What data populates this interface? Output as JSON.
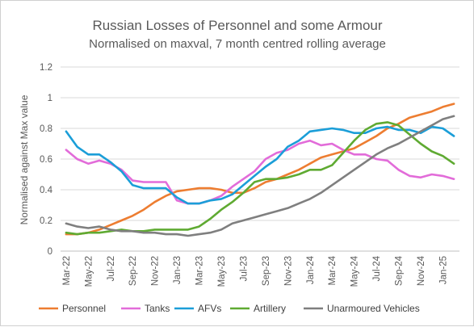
{
  "chart_data": {
    "type": "line",
    "title": "Russian Losses of Personnel and some Armour",
    "subtitle": "Normalised on maxval, 7 month centred rolling average",
    "xlabel": "",
    "ylabel": "Normalised against Max value",
    "ylim": [
      0,
      1.2
    ],
    "yticks": [
      "0",
      "0.2",
      "0.4",
      "0.6",
      "0.8",
      "1",
      "1.2"
    ],
    "grid": true,
    "legend_position": "bottom",
    "x_tick_labels": [
      "Mar-22",
      "May-22",
      "Jul-22",
      "Sep-22",
      "Nov-22",
      "Jan-23",
      "Mar-23",
      "May-23",
      "Jul-23",
      "Sep-23",
      "Nov-23",
      "Jan-24",
      "Mar-24",
      "May-24",
      "Jul-24",
      "Sep-24",
      "Nov-24",
      "Jan-25"
    ],
    "x": [
      "Mar-22",
      "Apr-22",
      "May-22",
      "Jun-22",
      "Jul-22",
      "Aug-22",
      "Sep-22",
      "Oct-22",
      "Nov-22",
      "Dec-22",
      "Jan-23",
      "Feb-23",
      "Mar-23",
      "Apr-23",
      "May-23",
      "Jun-23",
      "Jul-23",
      "Aug-23",
      "Sep-23",
      "Oct-23",
      "Nov-23",
      "Dec-23",
      "Jan-24",
      "Feb-24",
      "Mar-24",
      "Apr-24",
      "May-24",
      "Jun-24",
      "Jul-24",
      "Aug-24",
      "Sep-24",
      "Oct-24",
      "Nov-24",
      "Dec-24",
      "Jan-25",
      "Feb-25"
    ],
    "series": [
      {
        "name": "Personnel",
        "color": "#ED7D31",
        "values": [
          0.11,
          0.11,
          0.12,
          0.14,
          0.17,
          0.2,
          0.23,
          0.27,
          0.32,
          0.36,
          0.39,
          0.4,
          0.41,
          0.41,
          0.4,
          0.38,
          0.38,
          0.41,
          0.45,
          0.47,
          0.5,
          0.53,
          0.57,
          0.61,
          0.63,
          0.65,
          0.67,
          0.71,
          0.75,
          0.8,
          0.83,
          0.87,
          0.89,
          0.91,
          0.94,
          0.96
        ]
      },
      {
        "name": "Tanks",
        "color": "#E26CD9",
        "values": [
          0.66,
          0.6,
          0.57,
          0.59,
          0.57,
          0.53,
          0.46,
          0.45,
          0.45,
          0.45,
          0.33,
          0.31,
          0.31,
          0.33,
          0.36,
          0.42,
          0.47,
          0.52,
          0.6,
          0.64,
          0.66,
          0.7,
          0.72,
          0.69,
          0.7,
          0.66,
          0.63,
          0.63,
          0.6,
          0.59,
          0.53,
          0.49,
          0.48,
          0.5,
          0.49,
          0.47
        ]
      },
      {
        "name": "AFVs",
        "color": "#1B9ED8",
        "values": [
          0.78,
          0.68,
          0.63,
          0.63,
          0.58,
          0.52,
          0.43,
          0.41,
          0.41,
          0.41,
          0.35,
          0.31,
          0.31,
          0.33,
          0.34,
          0.37,
          0.43,
          0.49,
          0.55,
          0.6,
          0.68,
          0.72,
          0.78,
          0.79,
          0.8,
          0.79,
          0.77,
          0.77,
          0.8,
          0.81,
          0.79,
          0.79,
          0.77,
          0.81,
          0.8,
          0.75
        ]
      },
      {
        "name": "Artillery",
        "color": "#5FAA32",
        "values": [
          0.12,
          0.11,
          0.12,
          0.12,
          0.13,
          0.14,
          0.13,
          0.13,
          0.14,
          0.14,
          0.14,
          0.14,
          0.16,
          0.21,
          0.27,
          0.32,
          0.38,
          0.45,
          0.47,
          0.47,
          0.48,
          0.5,
          0.53,
          0.53,
          0.56,
          0.64,
          0.72,
          0.79,
          0.83,
          0.84,
          0.82,
          0.76,
          0.7,
          0.65,
          0.62,
          0.57
        ]
      },
      {
        "name": "Unarmoured Vehicles",
        "color": "#7F7F7F",
        "values": [
          0.18,
          0.16,
          0.15,
          0.16,
          0.14,
          0.13,
          0.13,
          0.12,
          0.12,
          0.11,
          0.11,
          0.1,
          0.11,
          0.12,
          0.14,
          0.18,
          0.2,
          0.22,
          0.24,
          0.26,
          0.28,
          0.31,
          0.34,
          0.38,
          0.43,
          0.48,
          0.53,
          0.58,
          0.63,
          0.67,
          0.7,
          0.74,
          0.78,
          0.82,
          0.86,
          0.88
        ]
      }
    ]
  }
}
